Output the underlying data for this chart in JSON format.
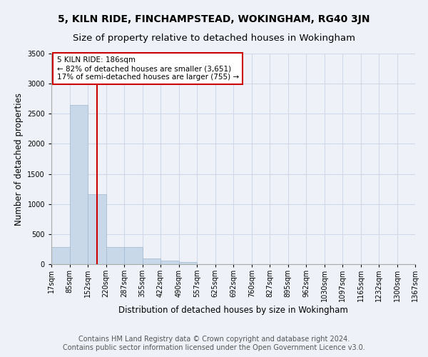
{
  "title1": "5, KILN RIDE, FINCHAMPSTEAD, WOKINGHAM, RG40 3JN",
  "title2": "Size of property relative to detached houses in Wokingham",
  "xlabel": "Distribution of detached houses by size in Wokingham",
  "ylabel": "Number of detached properties",
  "bin_edges": [
    17,
    85,
    152,
    220,
    287,
    355,
    422,
    490,
    557,
    625,
    692,
    760,
    827,
    895,
    962,
    1030,
    1097,
    1165,
    1232,
    1300,
    1367
  ],
  "bar_heights": [
    280,
    2650,
    1160,
    290,
    290,
    100,
    60,
    40,
    0,
    0,
    0,
    0,
    0,
    0,
    0,
    0,
    0,
    0,
    0,
    0
  ],
  "bar_color": "#c8d8e8",
  "bar_edge_color": "#a0b8d0",
  "grid_color": "#d0d8e8",
  "background_color": "#eef2f8",
  "vline_x": 186,
  "vline_color": "#cc0000",
  "annotation_text": "5 KILN RIDE: 186sqm\n← 82% of detached houses are smaller (3,651)\n17% of semi-detached houses are larger (755) →",
  "annotation_box_color": "white",
  "annotation_box_edge": "#cc0000",
  "ylim": [
    0,
    3500
  ],
  "yticks": [
    0,
    500,
    1000,
    1500,
    2000,
    2500,
    3000,
    3500
  ],
  "footer1": "Contains HM Land Registry data © Crown copyright and database right 2024.",
  "footer2": "Contains public sector information licensed under the Open Government Licence v3.0.",
  "title1_fontsize": 10,
  "title2_fontsize": 9.5,
  "tick_fontsize": 7,
  "ylabel_fontsize": 8.5,
  "xlabel_fontsize": 8.5,
  "footer_fontsize": 7,
  "annotation_fontsize": 7.5
}
